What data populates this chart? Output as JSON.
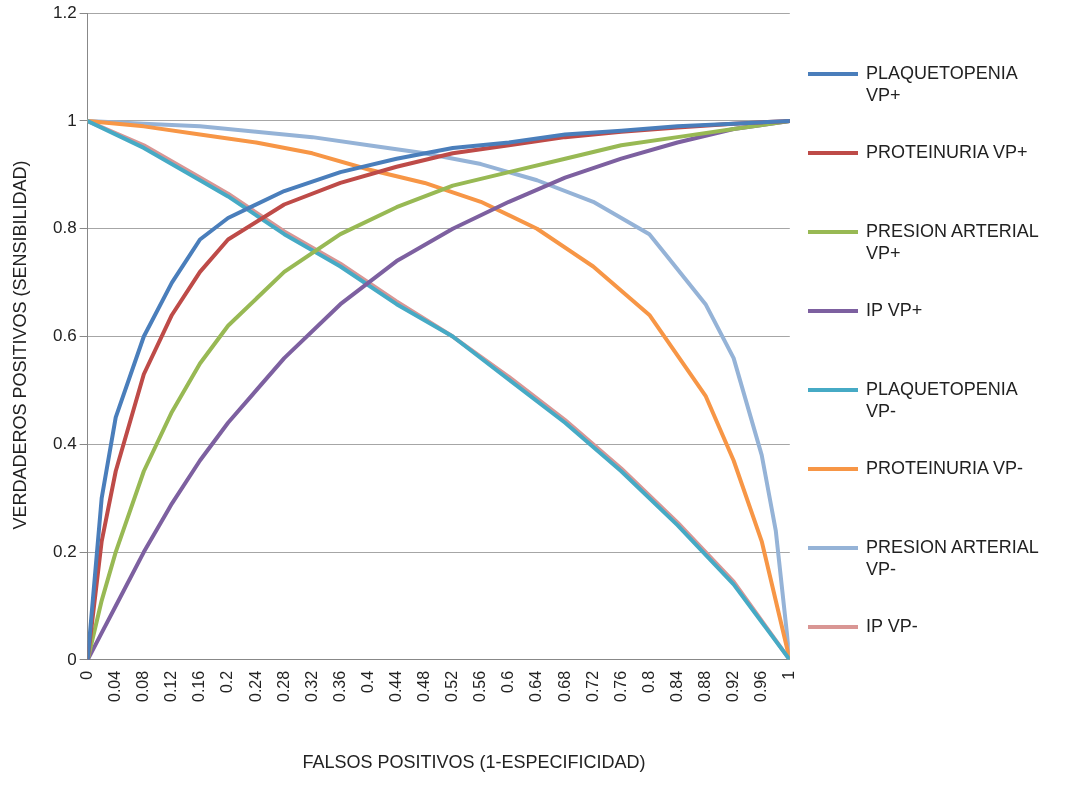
{
  "chart_data": {
    "type": "line",
    "xlabel": "FALSOS POSITIVOS (1-ESPECIFICIDAD)",
    "ylabel": "VERDADEROS POSITIVOS (SENSIBILIDAD)",
    "xlim": [
      0,
      1
    ],
    "ylim": [
      0,
      1.2
    ],
    "xticks": [
      0,
      0.04,
      0.08,
      0.12,
      0.16,
      0.2,
      0.24,
      0.28,
      0.32,
      0.36,
      0.4,
      0.44,
      0.48,
      0.52,
      0.56,
      0.6,
      0.64,
      0.68,
      0.72,
      0.76,
      0.8,
      0.84,
      0.88,
      0.92,
      0.96,
      1
    ],
    "yticks": [
      0,
      0.2,
      0.4,
      0.6,
      0.8,
      1,
      1.2
    ],
    "grid": "y",
    "legend": "right",
    "marker": "none",
    "line_style": "solid",
    "series": [
      {
        "name": "PLAQUETOPENIA VP+",
        "color": "#4a7ebb",
        "x": [
          0,
          0.02,
          0.04,
          0.08,
          0.12,
          0.16,
          0.2,
          0.28,
          0.36,
          0.44,
          0.52,
          0.6,
          0.68,
          0.76,
          0.84,
          0.92,
          1
        ],
        "values": [
          0,
          0.3,
          0.45,
          0.6,
          0.7,
          0.78,
          0.82,
          0.87,
          0.905,
          0.93,
          0.95,
          0.96,
          0.975,
          0.982,
          0.99,
          0.995,
          1
        ]
      },
      {
        "name": "PROTEINURIA VP+",
        "color": "#be4b48",
        "x": [
          0,
          0.02,
          0.04,
          0.08,
          0.12,
          0.16,
          0.2,
          0.28,
          0.36,
          0.44,
          0.52,
          0.6,
          0.68,
          0.76,
          0.84,
          0.92,
          1
        ],
        "values": [
          0,
          0.22,
          0.35,
          0.53,
          0.64,
          0.72,
          0.78,
          0.845,
          0.885,
          0.915,
          0.94,
          0.955,
          0.97,
          0.98,
          0.988,
          0.995,
          1
        ]
      },
      {
        "name": "PRESION ARTERIAL VP+",
        "color": "#98b954",
        "x": [
          0,
          0.02,
          0.04,
          0.08,
          0.12,
          0.16,
          0.2,
          0.28,
          0.36,
          0.44,
          0.52,
          0.6,
          0.68,
          0.76,
          0.84,
          0.92,
          1
        ],
        "values": [
          0,
          0.11,
          0.2,
          0.35,
          0.46,
          0.55,
          0.62,
          0.72,
          0.79,
          0.84,
          0.88,
          0.905,
          0.93,
          0.955,
          0.97,
          0.985,
          1
        ]
      },
      {
        "name": "IP VP+",
        "color": "#7d60a0",
        "x": [
          0,
          0.02,
          0.04,
          0.08,
          0.12,
          0.16,
          0.2,
          0.28,
          0.36,
          0.44,
          0.52,
          0.6,
          0.68,
          0.76,
          0.84,
          0.92,
          1
        ],
        "values": [
          0,
          0.05,
          0.1,
          0.2,
          0.29,
          0.37,
          0.44,
          0.56,
          0.66,
          0.74,
          0.8,
          0.85,
          0.895,
          0.93,
          0.96,
          0.985,
          1
        ]
      },
      {
        "name": "PLAQUETOPENIA VP-",
        "color": "#46aac5",
        "x": [
          0,
          0.08,
          0.16,
          0.2,
          0.28,
          0.36,
          0.44,
          0.52,
          0.6,
          0.68,
          0.76,
          0.84,
          0.92,
          1
        ],
        "values": [
          1,
          0.95,
          0.89,
          0.86,
          0.79,
          0.73,
          0.66,
          0.6,
          0.52,
          0.44,
          0.35,
          0.25,
          0.14,
          0
        ]
      },
      {
        "name": "PROTEINURIA VP-",
        "color": "#f79646",
        "x": [
          0,
          0.08,
          0.16,
          0.24,
          0.32,
          0.4,
          0.48,
          0.56,
          0.64,
          0.72,
          0.8,
          0.88,
          0.92,
          0.96,
          1
        ],
        "values": [
          1,
          0.99,
          0.975,
          0.96,
          0.94,
          0.91,
          0.885,
          0.85,
          0.8,
          0.73,
          0.64,
          0.49,
          0.37,
          0.22,
          0
        ]
      },
      {
        "name": "PRESION ARTERIAL VP-",
        "color": "#95b3d7",
        "x": [
          0,
          0.08,
          0.16,
          0.24,
          0.32,
          0.4,
          0.48,
          0.56,
          0.64,
          0.72,
          0.8,
          0.88,
          0.92,
          0.96,
          0.98,
          1
        ],
        "values": [
          1,
          0.995,
          0.99,
          0.98,
          0.97,
          0.955,
          0.94,
          0.92,
          0.89,
          0.85,
          0.79,
          0.66,
          0.56,
          0.38,
          0.24,
          0
        ]
      },
      {
        "name": "IP VP-",
        "color": "#d99694",
        "x": [
          0,
          0.08,
          0.16,
          0.2,
          0.28,
          0.36,
          0.44,
          0.52,
          0.6,
          0.68,
          0.76,
          0.84,
          0.92,
          1
        ],
        "values": [
          1,
          0.955,
          0.895,
          0.865,
          0.795,
          0.735,
          0.665,
          0.6,
          0.525,
          0.445,
          0.355,
          0.255,
          0.145,
          0
        ]
      }
    ]
  }
}
